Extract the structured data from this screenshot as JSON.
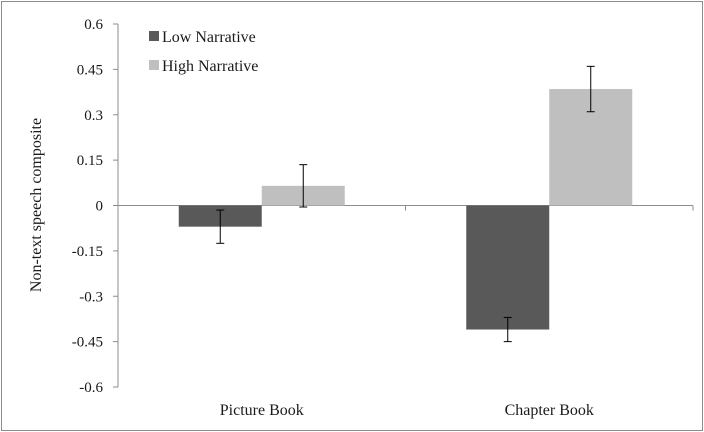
{
  "chart_data": {
    "type": "bar",
    "title": "",
    "xlabel": "",
    "ylabel": "Non-text speech composite",
    "categories": [
      "Picture Book",
      "Chapter Book"
    ],
    "series": [
      {
        "name": "Low Narrative",
        "color": "#595959",
        "values": [
          -0.07,
          -0.41
        ],
        "errors": [
          0.055,
          0.04
        ]
      },
      {
        "name": "High Narrative",
        "color": "#bfbfbf",
        "values": [
          0.065,
          0.385
        ],
        "errors": [
          0.07,
          0.075
        ]
      }
    ],
    "ylim": [
      -0.6,
      0.6
    ],
    "yticks": [
      0.6,
      0.45,
      0.3,
      0.15,
      0,
      -0.15,
      -0.3,
      -0.45,
      -0.6
    ],
    "ytick_labels": [
      "0.6",
      "0.45",
      "0.3",
      "0.15",
      "0",
      "-0.15",
      "-0.3",
      "-0.45",
      "-0.6"
    ],
    "grid": false,
    "legend_position": "top-left",
    "error_bars": true
  }
}
